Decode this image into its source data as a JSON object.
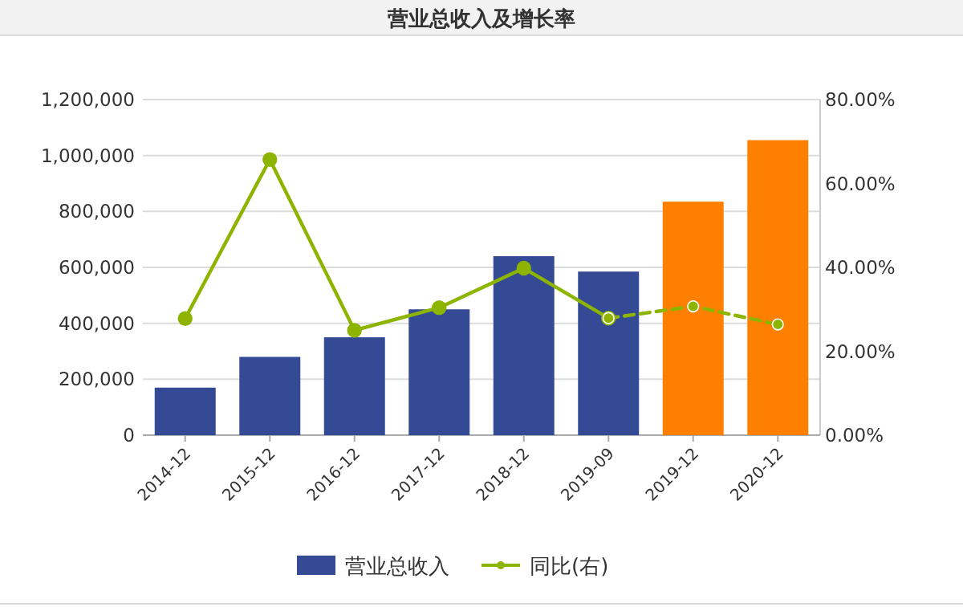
{
  "chart_data": {
    "type": "bar",
    "title": "营业总收入及增长率",
    "categories": [
      "2014-12",
      "2015-12",
      "2016-12",
      "2017-12",
      "2018-12",
      "2019-09",
      "2019-12",
      "2020-12"
    ],
    "series": [
      {
        "name": "营业总收入",
        "color": "#344a94",
        "colors": [
          "#344a94",
          "#344a94",
          "#344a94",
          "#344a94",
          "#344a94",
          "#344a94",
          "#ff7f00",
          "#ff7f00"
        ],
        "values": [
          170000,
          280000,
          350000,
          450000,
          640000,
          585000,
          835000,
          1055000
        ]
      },
      {
        "name": "同比(右)",
        "type": "line",
        "axis": "y2",
        "color": "#8cb400",
        "line_style": "solid",
        "marker": "circle",
        "values": [
          27.8,
          65.7,
          25.0,
          30.4,
          39.8,
          27.9,
          null,
          null
        ]
      },
      {
        "type": "line",
        "axis": "y2",
        "color": "#8cb400",
        "line_style": "dashed",
        "marker": "circle",
        "values": [
          null,
          null,
          null,
          null,
          null,
          27.9,
          30.7,
          26.4
        ]
      }
    ],
    "ylim": [
      0,
      1200000
    ],
    "yticks": [
      {
        "value": 0,
        "label": "0"
      },
      {
        "value": 200000,
        "label": "200,000"
      },
      {
        "value": 400000,
        "label": "400,000"
      },
      {
        "value": 600000,
        "label": "600,000"
      },
      {
        "value": 800000,
        "label": "800,000"
      },
      {
        "value": 1000000,
        "label": "1,000,000"
      },
      {
        "value": 1200000,
        "label": "1,200,000"
      }
    ],
    "y2lim": [
      0,
      80
    ],
    "y2ticks": [
      {
        "value": 0,
        "label": "0.00%"
      },
      {
        "value": 20,
        "label": "20.00%"
      },
      {
        "value": 40,
        "label": "40.00%"
      },
      {
        "value": 60,
        "label": "60.00%"
      },
      {
        "value": 80,
        "label": "80.00%"
      }
    ],
    "grid": "y",
    "legend": "bottom"
  }
}
